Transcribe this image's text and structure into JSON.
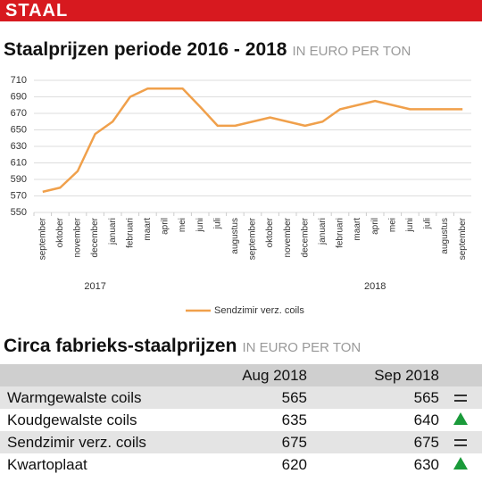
{
  "header": {
    "title": "STAAL"
  },
  "chart_data": {
    "type": "line",
    "title": "Staalprijzen periode 2016 - 2018",
    "subtitle": "IN EURO PER TON",
    "categories": [
      "september",
      "oktober",
      "november",
      "december",
      "januari",
      "februari",
      "maart",
      "april",
      "mei",
      "juni",
      "juli",
      "augustus",
      "september",
      "oktober",
      "november",
      "december",
      "januari",
      "februari",
      "maart",
      "april",
      "mei",
      "juni",
      "juli",
      "augustus",
      "september"
    ],
    "year_labels": [
      "2017",
      "2018"
    ],
    "series": [
      {
        "name": "Sendzimir verz. coils",
        "color": "#f0a04b",
        "values": [
          575,
          580,
          600,
          645,
          660,
          690,
          700,
          700,
          700,
          678,
          655,
          655,
          660,
          665,
          660,
          655,
          660,
          675,
          680,
          685,
          680,
          675,
          675,
          675,
          675
        ]
      }
    ],
    "ylim": [
      550,
      710
    ],
    "yticks": [
      550,
      570,
      590,
      610,
      630,
      650,
      670,
      690,
      710
    ],
    "grid": true,
    "legend": "bottom"
  },
  "table": {
    "title": "Circa fabrieks-staalprijzen",
    "subtitle": "IN EURO PER TON",
    "columns": [
      "Aug 2018",
      "Sep 2018"
    ],
    "rows": [
      [
        "Warmgewalste coils",
        565,
        565
      ],
      [
        "Koudgewalste coils",
        635,
        640
      ],
      [
        "Sendzimir verz. coils",
        675,
        675
      ],
      [
        "Kwartoplaat",
        620,
        630
      ]
    ]
  }
}
